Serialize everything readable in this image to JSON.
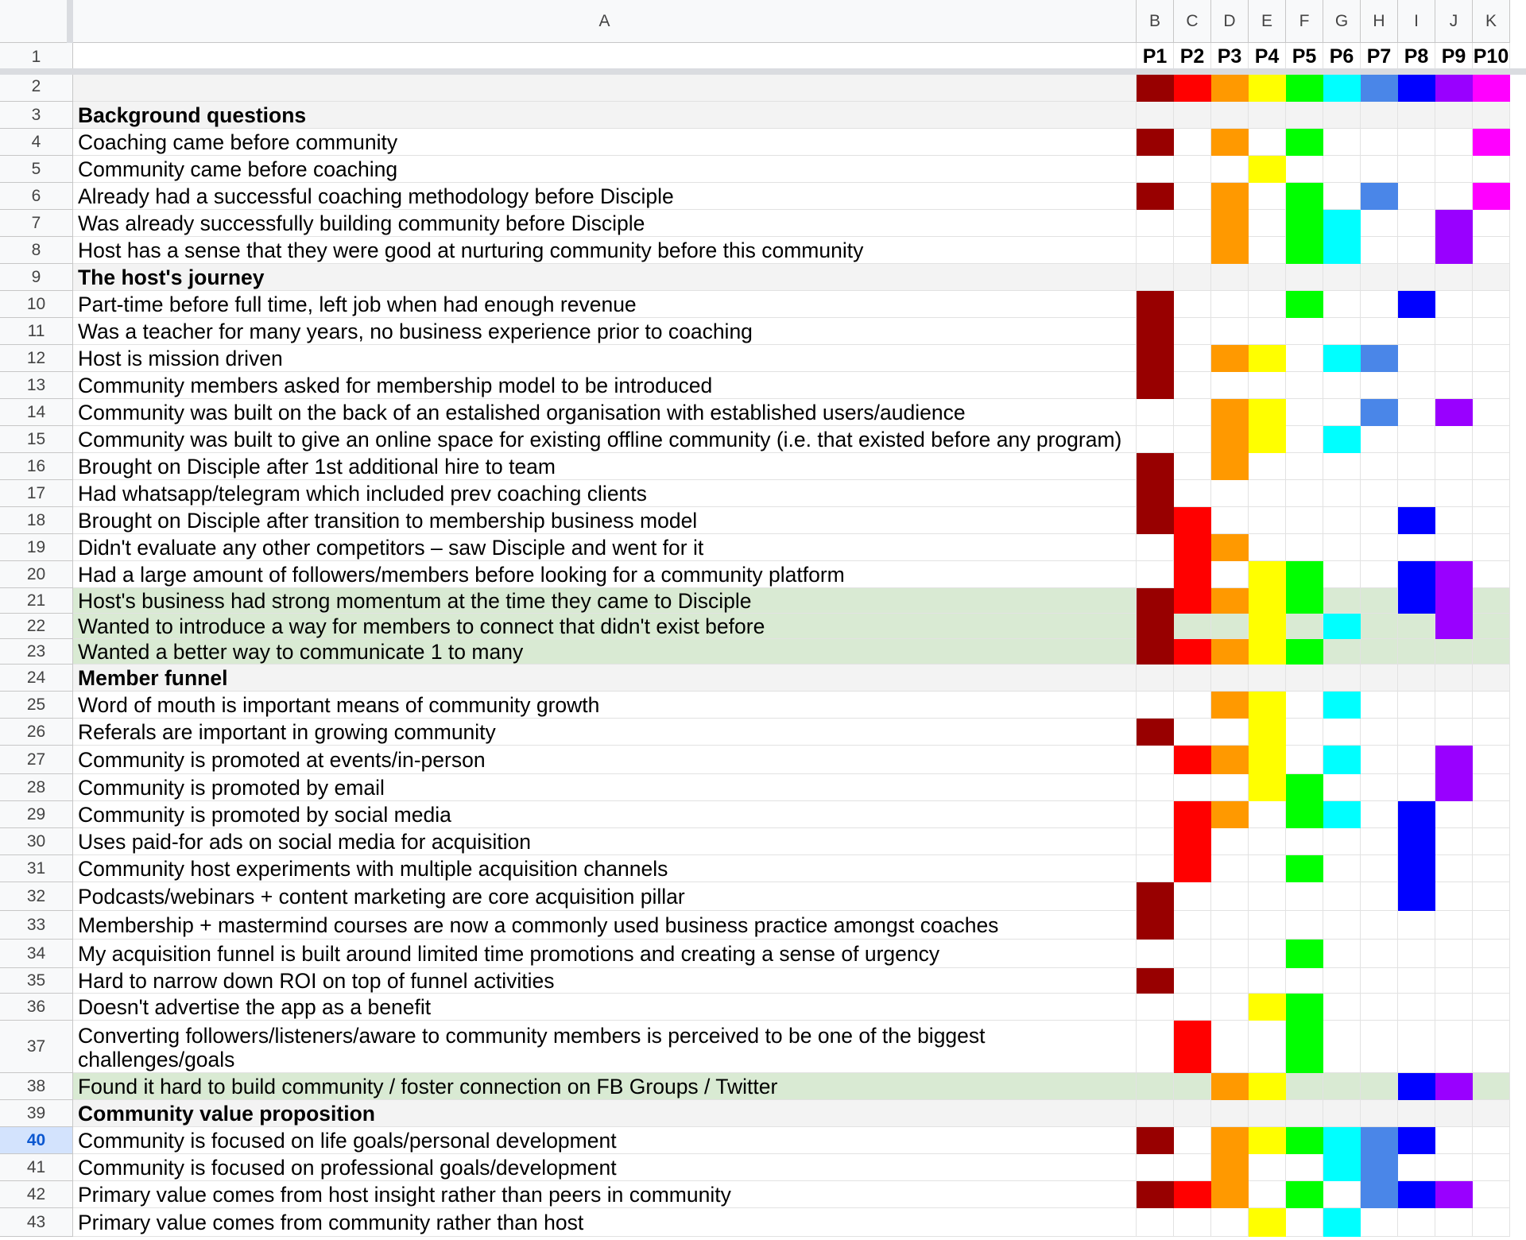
{
  "colors": {
    "P1": "#980000",
    "P2": "#ff0000",
    "P3": "#ff9900",
    "P4": "#ffff00",
    "P5": "#00ff00",
    "P6": "#00ffff",
    "P7": "#4a86e8",
    "P8": "#0000ff",
    "P9": "#9900ff",
    "P10": "#ff00ff",
    "section_bg": "#f3f3f3",
    "highlight_bg": "#d9ead3"
  },
  "columns": {
    "letters": [
      "A",
      "B",
      "C",
      "D",
      "E",
      "F",
      "G",
      "H",
      "I",
      "J",
      "K"
    ],
    "participants": [
      "P1",
      "P2",
      "P3",
      "P4",
      "P5",
      "P6",
      "P7",
      "P8",
      "P9",
      "P10"
    ]
  },
  "selected_row": "40",
  "rows": [
    {
      "num": "1",
      "type": "header",
      "label": "",
      "marks": []
    },
    {
      "num": "2",
      "type": "colorkey",
      "label": "",
      "marks": [
        "P1",
        "P2",
        "P3",
        "P4",
        "P5",
        "P6",
        "P7",
        "P8",
        "P9",
        "P10"
      ]
    },
    {
      "num": "3",
      "type": "section",
      "label": "Background questions",
      "marks": []
    },
    {
      "num": "4",
      "type": "normal",
      "label": "Coaching came before community",
      "marks": [
        "P1",
        "P3",
        "P5",
        "P10"
      ]
    },
    {
      "num": "5",
      "type": "normal",
      "label": "Community came before coaching",
      "marks": [
        "P4"
      ]
    },
    {
      "num": "6",
      "type": "normal",
      "label": "Already had a successful coaching methodology before Disciple",
      "marks": [
        "P1",
        "P3",
        "P5",
        "P7",
        "P10"
      ]
    },
    {
      "num": "7",
      "type": "normal",
      "label": "Was already successfully building community before Disciple",
      "marks": [
        "P3",
        "P5",
        "P6",
        "P9"
      ]
    },
    {
      "num": "8",
      "type": "normal",
      "label": "Host has a sense that they were good at nurturing community before this community",
      "marks": [
        "P3",
        "P5",
        "P6",
        "P9"
      ]
    },
    {
      "num": "9",
      "type": "section",
      "label": "The host's journey",
      "marks": []
    },
    {
      "num": "10",
      "type": "normal",
      "label": "Part-time before full time, left job when had enough revenue",
      "marks": [
        "P1",
        "P5",
        "P8"
      ]
    },
    {
      "num": "11",
      "type": "normal",
      "label": "Was a teacher for many years, no business experience prior to coaching",
      "marks": [
        "P1"
      ]
    },
    {
      "num": "12",
      "type": "normal",
      "label": "Host is mission driven",
      "marks": [
        "P1",
        "P3",
        "P4",
        "P6",
        "P7"
      ]
    },
    {
      "num": "13",
      "type": "normal",
      "label": "Community members asked for membership model to be introduced",
      "marks": [
        "P1"
      ]
    },
    {
      "num": "14",
      "type": "normal",
      "label": "Community was built on the back of an estalished organisation with established users/audience",
      "marks": [
        "P3",
        "P4",
        "P7",
        "P9"
      ]
    },
    {
      "num": "15",
      "type": "normal",
      "label": "Community was built to give an online space for existing offline community (i.e. that existed before any program)",
      "marks": [
        "P3",
        "P4",
        "P6"
      ]
    },
    {
      "num": "16",
      "type": "normal",
      "label": "Brought on Disciple after 1st additional hire to team",
      "marks": [
        "P1",
        "P3"
      ]
    },
    {
      "num": "17",
      "type": "normal",
      "label": "Had whatsapp/telegram which included prev coaching clients",
      "marks": [
        "P1"
      ]
    },
    {
      "num": "18",
      "type": "normal",
      "label": "Brought on Disciple after transition to membership business model",
      "marks": [
        "P1",
        "P2",
        "P8"
      ]
    },
    {
      "num": "19",
      "type": "normal",
      "label": "Didn't evaluate any other competitors – saw Disciple and went for it",
      "marks": [
        "P2",
        "P3"
      ]
    },
    {
      "num": "20",
      "type": "normal",
      "label": "Had a large amount of followers/members before looking for a community platform",
      "marks": [
        "P2",
        "P4",
        "P5",
        "P8",
        "P9"
      ]
    },
    {
      "num": "21",
      "type": "highlight",
      "label": "Host's business had strong momentum at the time they came to Disciple",
      "marks": [
        "P1",
        "P2",
        "P3",
        "P4",
        "P5",
        "P8",
        "P9"
      ]
    },
    {
      "num": "22",
      "type": "highlight",
      "label": "Wanted to introduce a way for members to connect that didn't exist before",
      "marks": [
        "P1",
        "P4",
        "P6",
        "P9"
      ]
    },
    {
      "num": "23",
      "type": "highlight",
      "label": "Wanted a better way to communicate 1 to many",
      "marks": [
        "P1",
        "P2",
        "P3",
        "P4",
        "P5"
      ]
    },
    {
      "num": "24",
      "type": "section",
      "label": "Member funnel",
      "marks": []
    },
    {
      "num": "25",
      "type": "normal",
      "label": "Word of mouth is important means of community growth",
      "marks": [
        "P3",
        "P4",
        "P6"
      ]
    },
    {
      "num": "26",
      "type": "normal",
      "label": "Referals are important in growing community",
      "marks": [
        "P1",
        "P4"
      ]
    },
    {
      "num": "27",
      "type": "normal",
      "label": "Community is promoted at events/in-person",
      "marks": [
        "P2",
        "P3",
        "P4",
        "P6",
        "P9"
      ]
    },
    {
      "num": "28",
      "type": "normal",
      "label": "Community is promoted by email",
      "marks": [
        "P4",
        "P5",
        "P9"
      ]
    },
    {
      "num": "29",
      "type": "normal",
      "label": "Community is promoted by social media",
      "marks": [
        "P2",
        "P3",
        "P5",
        "P6",
        "P8"
      ]
    },
    {
      "num": "30",
      "type": "normal",
      "label": "Uses paid-for ads on social media for acquisition",
      "marks": [
        "P2",
        "P8"
      ]
    },
    {
      "num": "31",
      "type": "normal",
      "label": "Community host experiments with multiple acquisition channels",
      "marks": [
        "P2",
        "P5",
        "P8"
      ]
    },
    {
      "num": "32",
      "type": "normal",
      "label": "Podcasts/webinars + content marketing are core acquisition pillar",
      "marks": [
        "P1",
        "P8"
      ]
    },
    {
      "num": "33",
      "type": "normal",
      "label": "Membership + mastermind courses are now a commonly used business practice amongst coaches",
      "marks": [
        "P1"
      ]
    },
    {
      "num": "34",
      "type": "normal",
      "label": "My acquisition funnel is built around limited time promotions and creating a sense of urgency",
      "marks": [
        "P5"
      ]
    },
    {
      "num": "35",
      "type": "normal",
      "label": "Hard to narrow down ROI on top of funnel activities",
      "marks": [
        "P1"
      ]
    },
    {
      "num": "36",
      "type": "normal",
      "label": "Doesn't advertise the app as a benefit",
      "marks": [
        "P4",
        "P5"
      ]
    },
    {
      "num": "37",
      "type": "normal",
      "wrap": true,
      "label": "Converting followers/listeners/aware to community members is perceived to be one of the biggest challenges/goals",
      "marks": [
        "P2",
        "P5"
      ]
    },
    {
      "num": "38",
      "type": "highlight",
      "label": "Found it hard to build community / foster connection on FB Groups / Twitter",
      "marks": [
        "P3",
        "P4",
        "P8",
        "P9"
      ]
    },
    {
      "num": "39",
      "type": "section",
      "label": "Community value proposition",
      "marks": []
    },
    {
      "num": "40",
      "type": "normal",
      "label": "Community is focused on life goals/personal development",
      "marks": [
        "P1",
        "P3",
        "P4",
        "P5",
        "P6",
        "P7",
        "P8"
      ]
    },
    {
      "num": "41",
      "type": "normal",
      "label": "Community is focused on professional goals/development",
      "marks": [
        "P3",
        "P6",
        "P7"
      ]
    },
    {
      "num": "42",
      "type": "normal",
      "label": "Primary value comes from host insight rather than peers in community",
      "marks": [
        "P1",
        "P2",
        "P3",
        "P5",
        "P7",
        "P8",
        "P9"
      ]
    },
    {
      "num": "43",
      "type": "normal",
      "label": "Primary value comes from community rather than host",
      "marks": [
        "P4",
        "P6"
      ]
    }
  ]
}
